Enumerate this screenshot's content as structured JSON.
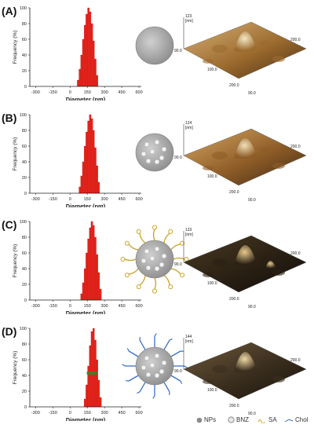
{
  "panels": [
    {
      "label": "(A)",
      "particle": "plain",
      "afm_peak": "123",
      "afm_unit": "[nm]",
      "afm_axes": [
        "90.0",
        "100.0",
        "200.0",
        "200.0",
        "90.0"
      ]
    },
    {
      "label": "(B)",
      "particle": "loaded",
      "afm_peak": "124",
      "afm_unit": "[nm]",
      "afm_axes": [
        "90.0",
        "100.0",
        "200.0",
        "200.0",
        "90.0"
      ]
    },
    {
      "label": "(C)",
      "particle": "sa",
      "afm_peak": "133",
      "afm_unit": "[nm]",
      "afm_axes": [
        "90.0",
        "100.0",
        "200.0",
        "200.0",
        "90.0"
      ]
    },
    {
      "label": "(D)",
      "particle": "chol",
      "afm_peak": "144",
      "afm_unit": "[nm]",
      "afm_axes": [
        "90.0",
        "100.0",
        "200.0",
        "200.0",
        "90.0"
      ]
    }
  ],
  "legend": {
    "nps": "NPs",
    "bnz": "BNZ",
    "sa": "SA",
    "chol": "Chol"
  },
  "colors": {
    "bar": "#e8231b",
    "bar_stripe": "#2e8b2e",
    "sa_ligand": "#c9a227",
    "chol_ligand": "#3a6fc4",
    "particle": "#a9a9a9"
  },
  "chart_data": [
    {
      "type": "bar",
      "xlabel": "Diameter (nm)",
      "ylabel": "Frequency (%)",
      "xlim": [
        -350,
        620
      ],
      "ylim": [
        0,
        100
      ],
      "xticks": [
        "-300",
        "-150",
        "0",
        "150",
        "300",
        "450",
        "600"
      ],
      "yticks": [
        "0",
        "20",
        "40",
        "60",
        "80",
        "100"
      ],
      "x": [
        70,
        85,
        100,
        115,
        130,
        145,
        160,
        175,
        190,
        205,
        220,
        235
      ],
      "values": [
        8,
        22,
        40,
        60,
        78,
        92,
        100,
        95,
        80,
        58,
        35,
        14
      ]
    },
    {
      "type": "bar",
      "xlabel": "Diameter (nm)",
      "ylabel": "Frequency (%)",
      "xlim": [
        -350,
        620
      ],
      "ylim": [
        0,
        100
      ],
      "xticks": [
        "-300",
        "-150",
        "0",
        "150",
        "300",
        "450",
        "600"
      ],
      "yticks": [
        "0",
        "20",
        "40",
        "60",
        "80",
        "100"
      ],
      "x": [
        85,
        100,
        115,
        130,
        145,
        160,
        175,
        190,
        205,
        220,
        235,
        250
      ],
      "values": [
        8,
        22,
        40,
        60,
        78,
        92,
        100,
        95,
        80,
        58,
        35,
        14
      ]
    },
    {
      "type": "bar",
      "xlabel": "Diameter (nm)",
      "ylabel": "Frequency (%)",
      "xlim": [
        -350,
        620
      ],
      "ylim": [
        0,
        100
      ],
      "xticks": [
        "-300",
        "-150",
        "0",
        "150",
        "300",
        "450",
        "600"
      ],
      "yticks": [
        "0",
        "20",
        "40",
        "60",
        "80",
        "100"
      ],
      "x": [
        100,
        115,
        130,
        145,
        160,
        175,
        190,
        205,
        220,
        235,
        250,
        265
      ],
      "values": [
        8,
        22,
        40,
        60,
        78,
        92,
        100,
        95,
        80,
        58,
        35,
        14
      ]
    },
    {
      "type": "bar",
      "xlabel": "Diameter (nm)",
      "ylabel": "Frequency (%)",
      "xlim": [
        -350,
        620
      ],
      "ylim": [
        0,
        100
      ],
      "xticks": [
        "-300",
        "-150",
        "0",
        "150",
        "300",
        "450",
        "600"
      ],
      "yticks": [
        "0",
        "20",
        "40",
        "60",
        "80",
        "100"
      ],
      "x": [
        130,
        145,
        160,
        175,
        190,
        205,
        220,
        235,
        250,
        265
      ],
      "values": [
        10,
        28,
        52,
        78,
        96,
        100,
        85,
        60,
        34,
        12
      ]
    }
  ]
}
